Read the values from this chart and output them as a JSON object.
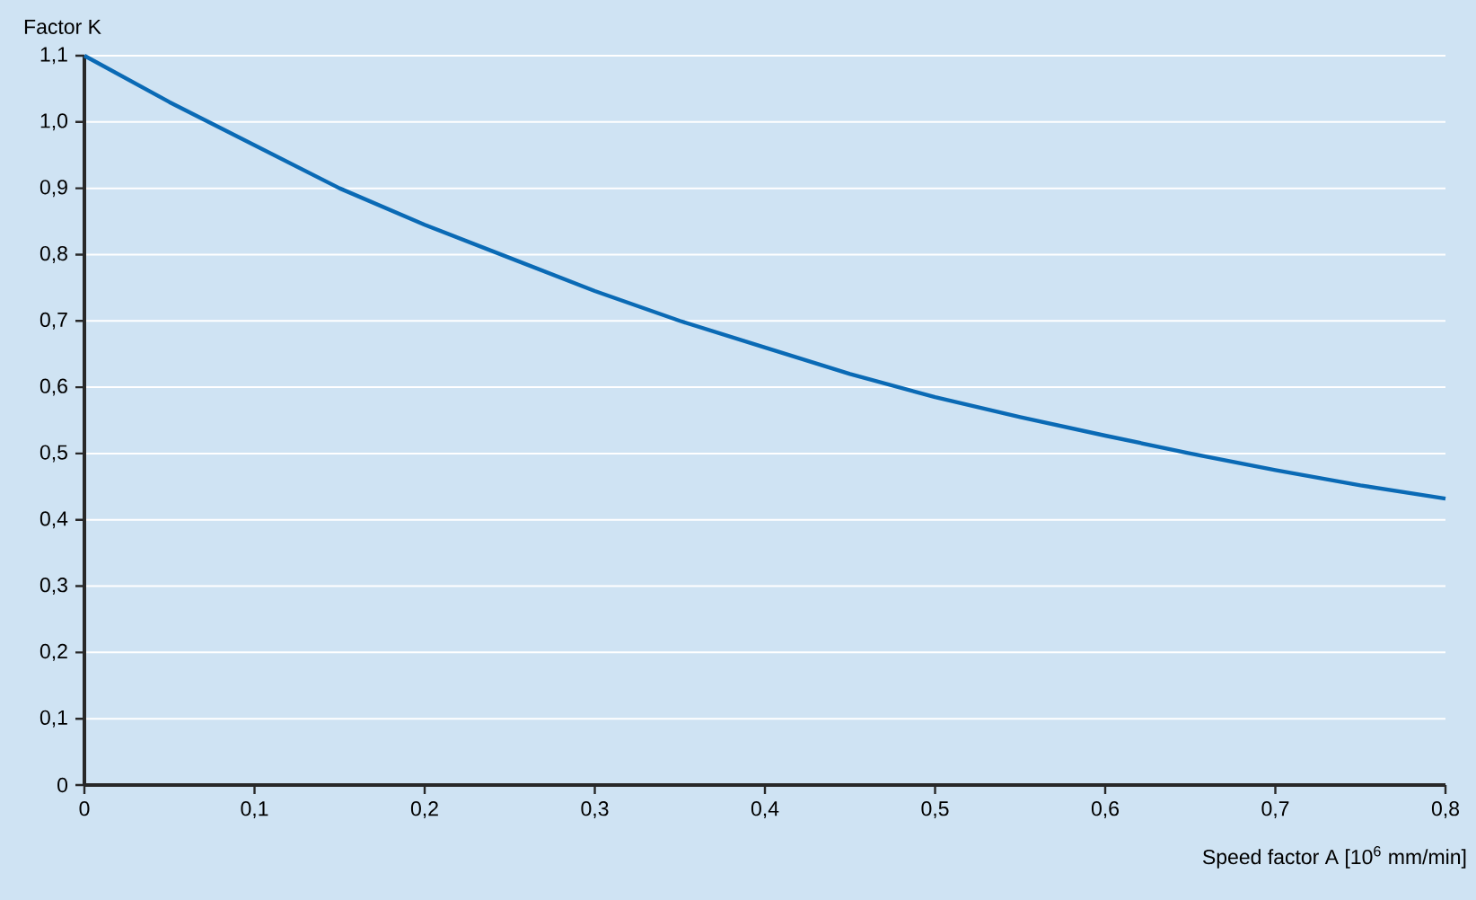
{
  "chart_data": {
    "type": "line",
    "xlabel": "Speed factor A [10$^{6}$ mm/min]",
    "ylabel": "Factor K",
    "x": [
      0,
      0.05,
      0.1,
      0.15,
      0.2,
      0.25,
      0.3,
      0.35,
      0.4,
      0.45,
      0.5,
      0.55,
      0.6,
      0.65,
      0.7,
      0.75,
      0.8
    ],
    "series": [
      {
        "color": "#0a6ab5",
        "values": [
          1.1,
          1.03,
          0.965,
          0.9,
          0.845,
          0.795,
          0.745,
          0.7,
          0.66,
          0.62,
          0.585,
          0.555,
          0.527,
          0.5,
          0.475,
          0.452,
          0.432
        ]
      }
    ],
    "xlim": [
      0,
      0.8
    ],
    "ylim": [
      0,
      1.1
    ],
    "xticks": [
      0,
      {
        "value": 0.1,
        "label": "0,1"
      },
      {
        "value": 0.2,
        "label": "0,2"
      },
      {
        "value": 0.3,
        "label": "0,3"
      },
      {
        "value": 0.4,
        "label": "0,4"
      },
      {
        "value": 0.5,
        "label": "0,5"
      },
      {
        "value": 0.6,
        "label": "0,6"
      },
      {
        "value": 0.7,
        "label": "0,7"
      },
      {
        "value": 0.8,
        "label": "0,8"
      }
    ],
    "yticks": [
      0,
      {
        "value": 0.1,
        "label": "0,1"
      },
      {
        "value": 0.2,
        "label": "0,2"
      },
      {
        "value": 0.3,
        "label": "0,3"
      },
      {
        "value": 0.4,
        "label": "0,4"
      },
      {
        "value": 0.5,
        "label": "0,5"
      },
      {
        "value": 0.6,
        "label": "0,6"
      },
      {
        "value": 0.7,
        "label": "0,7"
      },
      {
        "value": 0.8,
        "label": "0,8"
      },
      {
        "value": 0.9,
        "label": "0,9"
      },
      {
        "value": 1.0,
        "label": "1,0"
      },
      {
        "value": 1.1,
        "label": "1,1"
      }
    ],
    "grid": "y",
    "marker": "none",
    "line_style": "solid"
  }
}
